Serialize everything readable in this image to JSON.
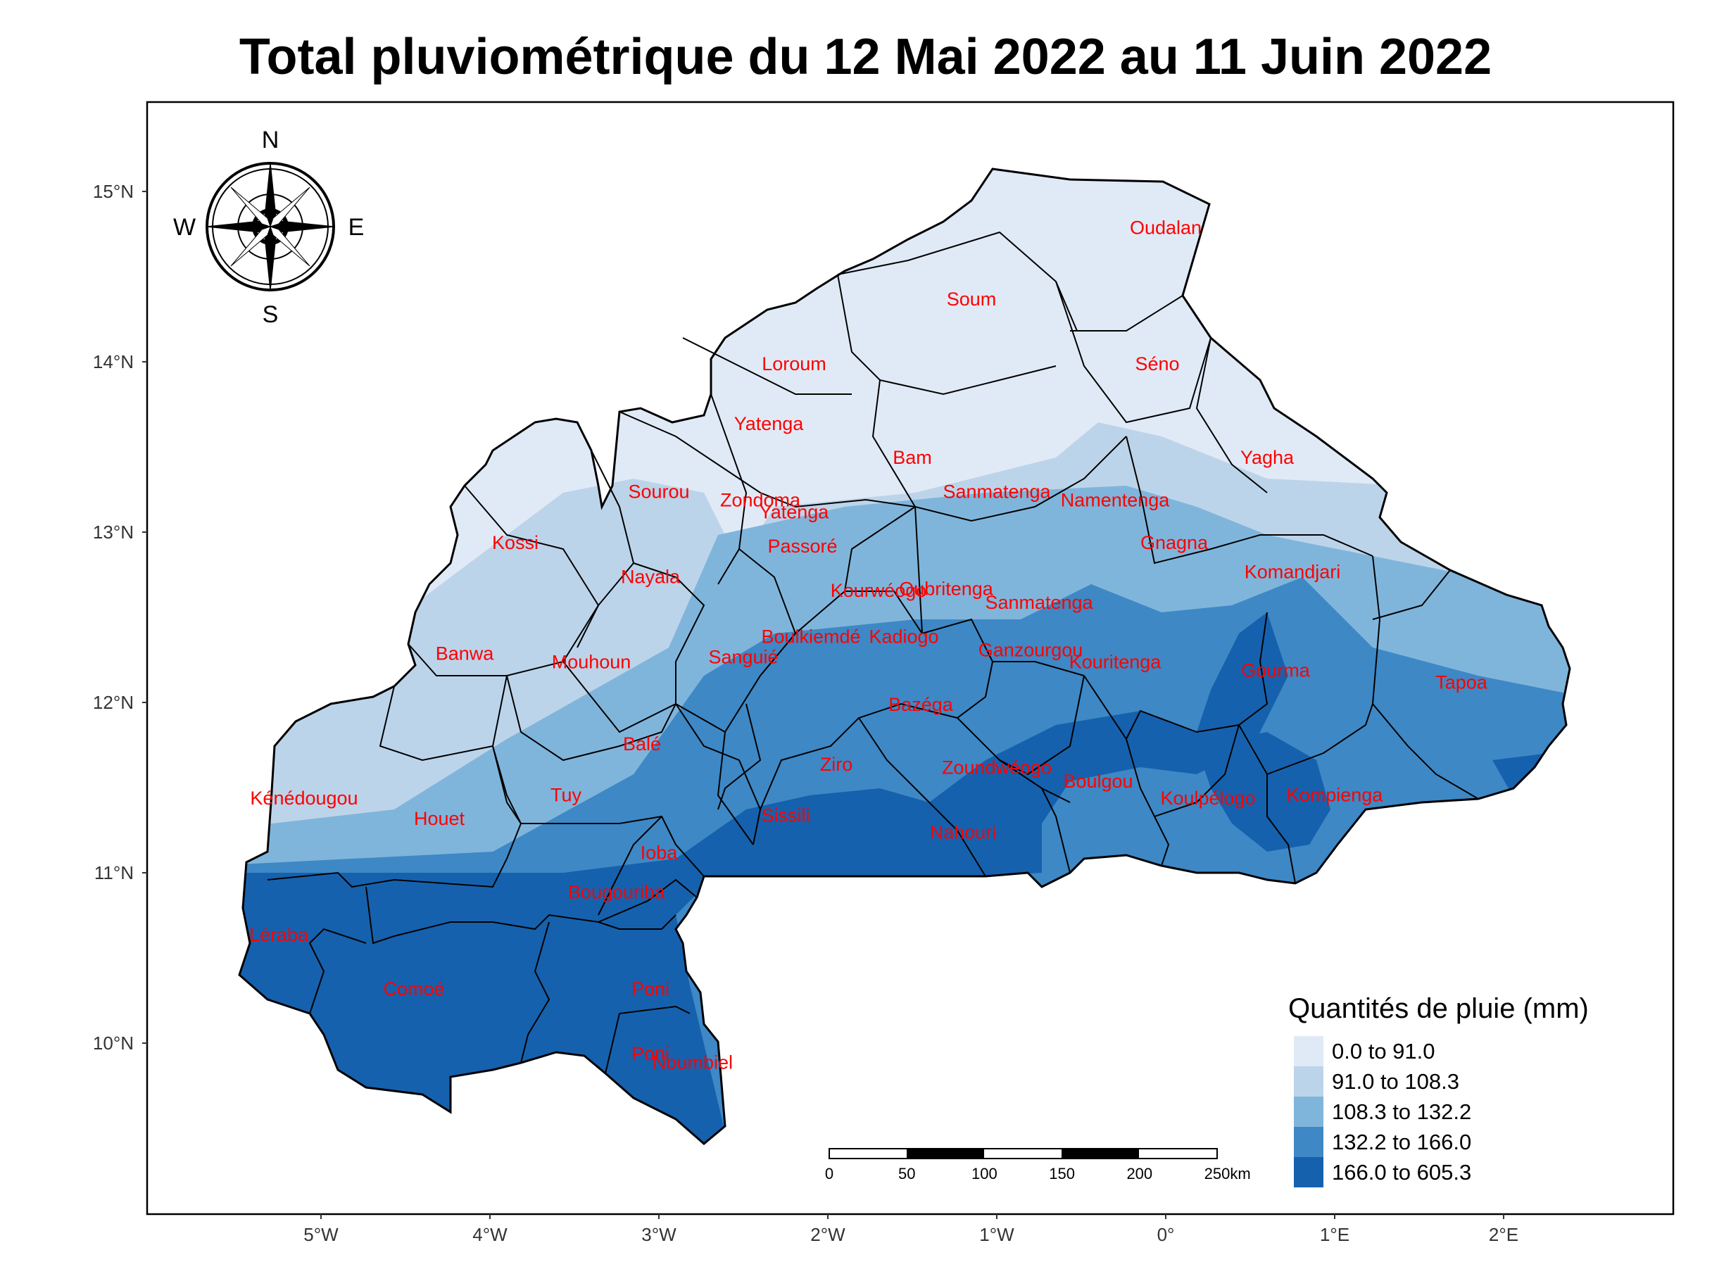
{
  "title": "Total pluviométrique du 12 Mai 2022 au 11 Juin 2022",
  "lat_ticks": [
    "15°N",
    "14°N",
    "13°N",
    "12°N",
    "11°N",
    "10°N"
  ],
  "lon_ticks": [
    "5°W",
    "4°W",
    "3°W",
    "2°W",
    "1°W",
    "0°",
    "1°E",
    "2°E"
  ],
  "compass": {
    "n": "N",
    "s": "S",
    "e": "E",
    "w": "W"
  },
  "legend": {
    "title": "Quantités de pluie (mm)",
    "classes": [
      {
        "label": "0.0 to 91.0",
        "color": "#e0eaf6"
      },
      {
        "label": "91.0 to 108.3",
        "color": "#bcd4ea"
      },
      {
        "label": "108.3 to 132.2",
        "color": "#80b5db"
      },
      {
        "label": "132.2 to 166.0",
        "color": "#3e88c5"
      },
      {
        "label": "166.0 to 605.3",
        "color": "#1661ad"
      }
    ]
  },
  "scalebar": {
    "labels": [
      "0",
      "50",
      "100",
      "150",
      "200",
      "250"
    ],
    "unit": "km"
  },
  "provinces": [
    {
      "name": "Oudalan",
      "lon": 0.0,
      "lat": 14.75,
      "class": 0
    },
    {
      "name": "Soum",
      "lon": -1.15,
      "lat": 14.33,
      "class": 0
    },
    {
      "name": "Séno",
      "lon": -0.05,
      "lat": 13.95,
      "class": 0
    },
    {
      "name": "Loroum",
      "lon": -2.2,
      "lat": 13.95,
      "class": 0
    },
    {
      "name": "Yatenga",
      "lon": -2.35,
      "lat": 13.6,
      "class": 0
    },
    {
      "name": "Bam",
      "lon": -1.5,
      "lat": 13.4,
      "class": 1
    },
    {
      "name": "Yagha",
      "lon": 0.6,
      "lat": 13.4,
      "class": 1
    },
    {
      "name": "Sourou",
      "lon": -3.0,
      "lat": 13.2,
      "class": 0
    },
    {
      "name": "Zondoma",
      "lon": -2.4,
      "lat": 13.15,
      "class": 1
    },
    {
      "name": "Sanmatenga",
      "lon": -1.0,
      "lat": 13.2,
      "class": 1
    },
    {
      "name": "Namentenga",
      "lon": -0.3,
      "lat": 13.15,
      "class": 1
    },
    {
      "name": "Yatenga",
      "lon": -2.2,
      "lat": 13.08,
      "class": 1
    },
    {
      "name": "Kossi",
      "lon": -3.85,
      "lat": 12.9,
      "class": 0
    },
    {
      "name": "Passoré",
      "lon": -2.15,
      "lat": 12.88,
      "class": 2
    },
    {
      "name": "Gnagna",
      "lon": 0.05,
      "lat": 12.9,
      "class": 2
    },
    {
      "name": "Komandjari",
      "lon": 0.75,
      "lat": 12.73,
      "class": 3
    },
    {
      "name": "Nayala",
      "lon": -3.05,
      "lat": 12.7,
      "class": 1
    },
    {
      "name": "Kourwéogo",
      "lon": -1.7,
      "lat": 12.62,
      "class": 2
    },
    {
      "name": "Oubritenga",
      "lon": -1.3,
      "lat": 12.63,
      "class": 2
    },
    {
      "name": "Sanmatenga",
      "lon": -0.75,
      "lat": 12.55,
      "class": 2
    },
    {
      "name": "Boulkiemdé",
      "lon": -2.1,
      "lat": 12.35,
      "class": 2
    },
    {
      "name": "Kadiogo",
      "lon": -1.55,
      "lat": 12.35,
      "class": 3
    },
    {
      "name": "Ganzourgou",
      "lon": -0.8,
      "lat": 12.27,
      "class": 3
    },
    {
      "name": "Banwa",
      "lon": -4.15,
      "lat": 12.25,
      "class": 0
    },
    {
      "name": "Mouhoun",
      "lon": -3.4,
      "lat": 12.2,
      "class": 0
    },
    {
      "name": "Sanguié",
      "lon": -2.5,
      "lat": 12.23,
      "class": 2
    },
    {
      "name": "Kouritenga",
      "lon": -0.3,
      "lat": 12.2,
      "class": 3
    },
    {
      "name": "Gourma",
      "lon": 0.65,
      "lat": 12.15,
      "class": 4
    },
    {
      "name": "Tapoa",
      "lon": 1.75,
      "lat": 12.08,
      "class": 2
    },
    {
      "name": "Bazéga",
      "lon": -1.45,
      "lat": 11.95,
      "class": 3
    },
    {
      "name": "Balé",
      "lon": -3.1,
      "lat": 11.72,
      "class": 1
    },
    {
      "name": "Ziro",
      "lon": -1.95,
      "lat": 11.6,
      "class": 3
    },
    {
      "name": "Zoundwéogo",
      "lon": -1.0,
      "lat": 11.58,
      "class": 3
    },
    {
      "name": "Boulgou",
      "lon": -0.4,
      "lat": 11.5,
      "class": 4
    },
    {
      "name": "Kénédougou",
      "lon": -5.1,
      "lat": 11.4,
      "class": 1
    },
    {
      "name": "Tuy",
      "lon": -3.55,
      "lat": 11.42,
      "class": 2
    },
    {
      "name": "Koulpélogo",
      "lon": 0.25,
      "lat": 11.4,
      "class": 3
    },
    {
      "name": "Kompienga",
      "lon": 1.0,
      "lat": 11.42,
      "class": 4
    },
    {
      "name": "Houet",
      "lon": -4.3,
      "lat": 11.28,
      "class": 1
    },
    {
      "name": "Sissili",
      "lon": -2.25,
      "lat": 11.3,
      "class": 4
    },
    {
      "name": "Nahouri",
      "lon": -1.2,
      "lat": 11.2,
      "class": 4
    },
    {
      "name": "Ioba",
      "lon": -3.0,
      "lat": 11.08,
      "class": 4
    },
    {
      "name": "Bougouriba",
      "lon": -3.25,
      "lat": 10.85,
      "class": 4
    },
    {
      "name": "Léraba",
      "lon": -5.25,
      "lat": 10.6,
      "class": 4
    },
    {
      "name": "Comoé",
      "lon": -4.45,
      "lat": 10.28,
      "class": 4
    },
    {
      "name": "Poni",
      "lon": -3.05,
      "lat": 10.28,
      "class": 4
    },
    {
      "name": "Poni",
      "lon": -3.05,
      "lat": 9.9,
      "class": 4
    },
    {
      "name": "Noumbiel",
      "lon": -2.8,
      "lat": 9.85,
      "class": 4
    }
  ]
}
